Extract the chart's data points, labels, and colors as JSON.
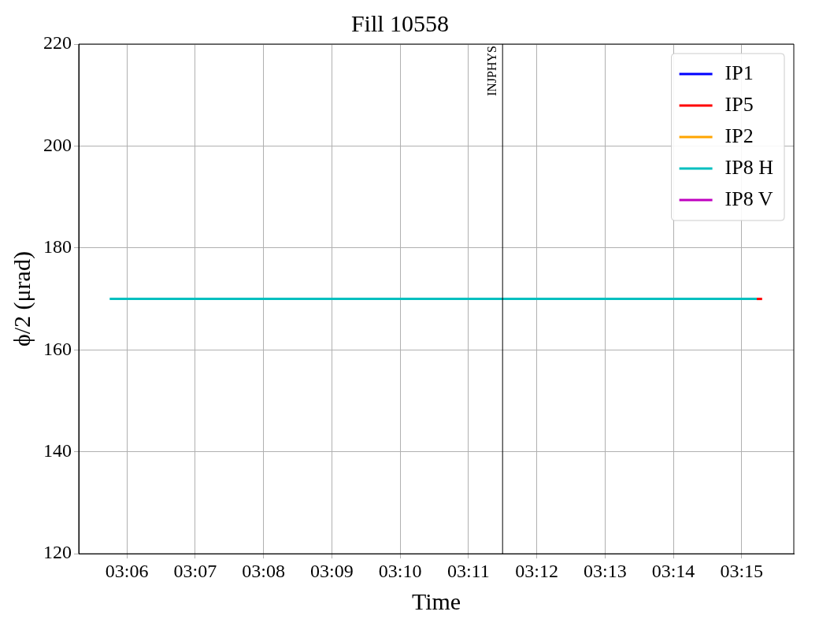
{
  "chart_data": {
    "type": "line",
    "title": "Fill 10558",
    "xlabel": "Time",
    "ylabel": "ϕ/2 (μrad)",
    "xlim": [
      3.08825,
      3.26273
    ],
    "xticks": [
      {
        "value": 3.1,
        "label": "03:06"
      },
      {
        "value": 3.116667,
        "label": "03:07"
      },
      {
        "value": 3.133333,
        "label": "03:08"
      },
      {
        "value": 3.15,
        "label": "03:09"
      },
      {
        "value": 3.166667,
        "label": "03:10"
      },
      {
        "value": 3.183333,
        "label": "03:11"
      },
      {
        "value": 3.2,
        "label": "03:12"
      },
      {
        "value": 3.216667,
        "label": "03:13"
      },
      {
        "value": 3.233333,
        "label": "03:14"
      },
      {
        "value": 3.25,
        "label": "03:15"
      }
    ],
    "ylim": [
      120,
      220
    ],
    "yticks": [
      120,
      140,
      160,
      180,
      200,
      220
    ],
    "series": [
      {
        "name": "IP1",
        "color": "#0000ff"
      },
      {
        "name": "IP5",
        "color": "#ff0000",
        "x": [
          3.2537,
          3.255
        ],
        "values": [
          170,
          170
        ]
      },
      {
        "name": "IP2",
        "color": "#ffa500"
      },
      {
        "name": "IP8 H",
        "color": "#00bfbf",
        "x": [
          3.0958,
          3.2537
        ],
        "values": [
          170,
          170
        ]
      },
      {
        "name": "IP8 V",
        "color": "#bf00bf"
      }
    ],
    "ref_lines": [
      {
        "axis": "x",
        "value": 3.19167,
        "label": "INJPHYS",
        "color": "#000000"
      }
    ],
    "grid": true,
    "legend": "top right",
    "line_style": "solid",
    "marker": "none"
  }
}
